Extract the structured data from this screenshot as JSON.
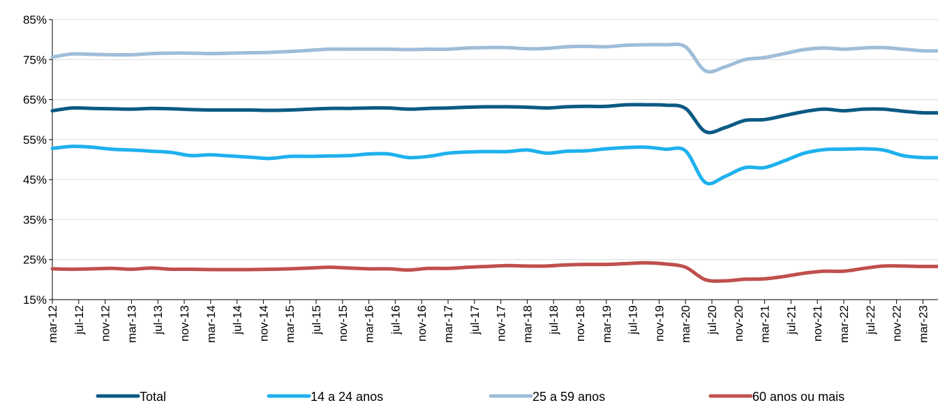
{
  "chart_data": {
    "type": "line",
    "title": "",
    "xlabel": "",
    "ylabel": "",
    "ylim": [
      15,
      85
    ],
    "y_ticks": [
      "15%",
      "25%",
      "35%",
      "45%",
      "55%",
      "65%",
      "75%",
      "85%"
    ],
    "grid": "horizontal",
    "legend_position": "bottom",
    "x_tick_labels": [
      "mar-12",
      "jul-12",
      "nov-12",
      "mar-13",
      "jul-13",
      "nov-13",
      "mar-14",
      "jul-14",
      "nov-14",
      "mar-15",
      "jul-15",
      "nov-15",
      "mar-16",
      "jul-16",
      "nov-16",
      "mar-17",
      "jul-17",
      "nov-17",
      "mar-18",
      "jul-18",
      "nov-18",
      "mar-19",
      "jul-19",
      "nov-19",
      "mar-20",
      "jul-20",
      "nov-20",
      "mar-21",
      "jul-21",
      "nov-21",
      "mar-22",
      "jul-22",
      "nov-22",
      "mar-23"
    ],
    "x": [
      "mar-12",
      "jun-12",
      "sep-12",
      "dec-12",
      "mar-13",
      "jun-13",
      "sep-13",
      "dec-13",
      "mar-14",
      "jun-14",
      "sep-14",
      "dec-14",
      "mar-15",
      "jun-15",
      "sep-15",
      "dec-15",
      "mar-16",
      "jun-16",
      "sep-16",
      "dec-16",
      "mar-17",
      "jun-17",
      "sep-17",
      "dec-17",
      "mar-18",
      "jun-18",
      "sep-18",
      "dec-18",
      "mar-19",
      "jun-19",
      "sep-19",
      "dec-19",
      "mar-20",
      "jun-20",
      "sep-20",
      "dec-20",
      "mar-21",
      "jun-21",
      "sep-21",
      "dec-21",
      "mar-22",
      "jun-22",
      "sep-22",
      "dec-22",
      "mar-23",
      "jun-23"
    ],
    "series": [
      {
        "name": "Total",
        "color": "#0b5a84",
        "values": [
          62.2,
          62.9,
          62.8,
          62.7,
          62.6,
          62.8,
          62.7,
          62.5,
          62.4,
          62.4,
          62.4,
          62.3,
          62.4,
          62.6,
          62.8,
          62.8,
          62.9,
          62.9,
          62.6,
          62.8,
          62.9,
          63.1,
          63.2,
          63.2,
          63.1,
          62.9,
          63.2,
          63.3,
          63.3,
          63.7,
          63.7,
          63.6,
          62.8,
          57.0,
          58.0,
          59.8,
          60.0,
          61.0,
          62.0,
          62.6,
          62.2,
          62.6,
          62.6,
          62.1,
          61.7,
          61.7
        ]
      },
      {
        "name": "14 a 24 anos",
        "color": "#1eb1ee",
        "values": [
          52.8,
          53.3,
          53.1,
          52.6,
          52.4,
          52.1,
          51.8,
          51.0,
          51.2,
          50.9,
          50.6,
          50.3,
          50.8,
          50.8,
          50.9,
          51.0,
          51.4,
          51.4,
          50.5,
          50.8,
          51.6,
          51.9,
          52.0,
          52.0,
          52.4,
          51.6,
          52.1,
          52.2,
          52.7,
          53.0,
          53.1,
          52.6,
          52.2,
          44.3,
          45.8,
          48.0,
          48.0,
          49.7,
          51.6,
          52.5,
          52.6,
          52.7,
          52.4,
          51.0,
          50.5,
          50.5
        ]
      },
      {
        "name": "25 a 59 anos",
        "color": "#9ebdd8",
        "values": [
          75.6,
          76.4,
          76.3,
          76.2,
          76.2,
          76.5,
          76.6,
          76.6,
          76.5,
          76.6,
          76.7,
          76.8,
          77.0,
          77.3,
          77.6,
          77.6,
          77.6,
          77.6,
          77.5,
          77.6,
          77.6,
          77.9,
          78.0,
          78.0,
          77.7,
          77.8,
          78.2,
          78.3,
          78.2,
          78.6,
          78.7,
          78.7,
          78.2,
          72.2,
          73.2,
          75.0,
          75.5,
          76.5,
          77.5,
          77.9,
          77.6,
          77.9,
          78.0,
          77.6,
          77.2,
          77.2
        ]
      },
      {
        "name": "60 anos ou mais",
        "color": "#c0504d",
        "values": [
          22.7,
          22.6,
          22.7,
          22.8,
          22.6,
          22.9,
          22.6,
          22.6,
          22.5,
          22.5,
          22.5,
          22.6,
          22.7,
          22.9,
          23.1,
          22.9,
          22.7,
          22.7,
          22.4,
          22.8,
          22.8,
          23.1,
          23.3,
          23.5,
          23.4,
          23.4,
          23.7,
          23.8,
          23.8,
          24.0,
          24.2,
          23.9,
          23.1,
          20.0,
          19.7,
          20.1,
          20.2,
          20.8,
          21.6,
          22.1,
          22.1,
          22.8,
          23.4,
          23.4,
          23.3,
          23.3
        ]
      }
    ]
  }
}
